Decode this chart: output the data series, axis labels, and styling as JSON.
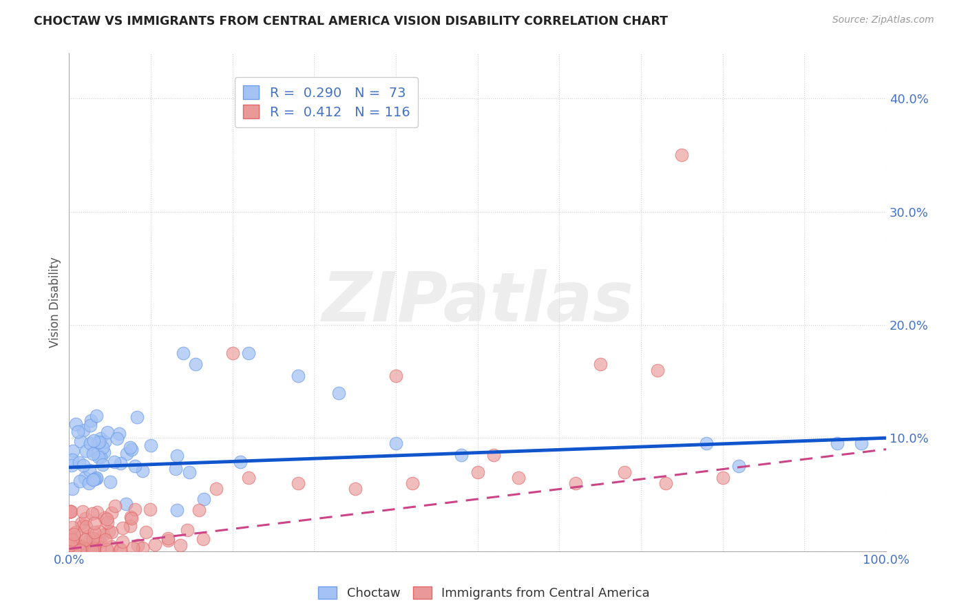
{
  "title": "CHOCTAW VS IMMIGRANTS FROM CENTRAL AMERICA VISION DISABILITY CORRELATION CHART",
  "source": "Source: ZipAtlas.com",
  "ylabel": "Vision Disability",
  "xlim": [
    0,
    1
  ],
  "ylim": [
    0,
    0.44
  ],
  "blue_color": "#a4c2f4",
  "blue_edge_color": "#6d9eeb",
  "pink_color": "#ea9999",
  "pink_edge_color": "#e06666",
  "blue_line_color": "#1155cc",
  "pink_line_color": "#cc4488",
  "R_blue": 0.29,
  "N_blue": 73,
  "R_pink": 0.412,
  "N_pink": 116,
  "blue_intercept": 0.074,
  "blue_slope": 0.026,
  "pink_intercept": 0.002,
  "pink_slope": 0.088,
  "watermark": "ZIPatlas",
  "legend_label_blue": "Choctaw",
  "legend_label_pink": "Immigrants from Central America"
}
